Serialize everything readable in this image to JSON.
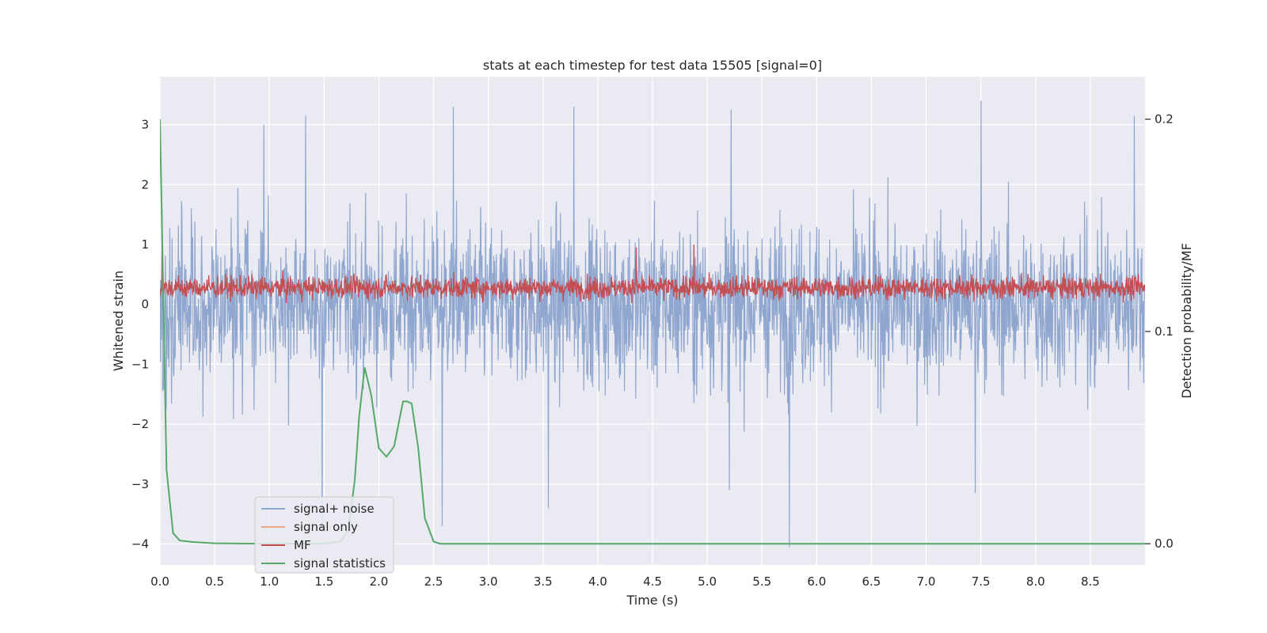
{
  "chart_data": {
    "type": "line",
    "title": "stats at each timestep for test data 15505 [signal=0]",
    "xlabel": "Time (s)",
    "ylabel": "Whitened strain",
    "y2label": "Detection probability/MF",
    "xlim": [
      0,
      9.0
    ],
    "ylim": [
      -4.35,
      3.8
    ],
    "y2lim": [
      -0.01,
      0.22
    ],
    "grid": true,
    "legend_position": "lower-left",
    "x_ticks": [
      0.0,
      0.5,
      1.0,
      1.5,
      2.0,
      2.5,
      3.0,
      3.5,
      4.0,
      4.5,
      5.0,
      5.5,
      6.0,
      6.5,
      7.0,
      7.5,
      8.0,
      8.5
    ],
    "x_tick_labels": [
      "0.0",
      "0.5",
      "1.0",
      "1.5",
      "2.0",
      "2.5",
      "3.0",
      "3.5",
      "4.0",
      "4.5",
      "5.0",
      "5.5",
      "6.0",
      "6.5",
      "7.0",
      "7.5",
      "8.0",
      "8.5"
    ],
    "y_ticks": [
      3,
      2,
      1,
      0,
      -1,
      -2,
      -3,
      -4
    ],
    "y_tick_labels": [
      "3",
      "2",
      "1",
      "0",
      "−1",
      "−2",
      "−3",
      "−4"
    ],
    "y2_ticks": [
      0.2,
      0.1,
      0.0
    ],
    "y2_tick_labels": [
      "0.2",
      "0.1",
      "0.0"
    ],
    "series": [
      {
        "name": "signal+ noise",
        "color": "#8fa6cf",
        "axis": "left",
        "description": "whitened strain noise, spans roughly -2.5 to 2.5 with spikes",
        "noise_range": [
          -2.6,
          2.6
        ],
        "spikes": [
          {
            "x": 0.95,
            "y": 3.0
          },
          {
            "x": 1.33,
            "y": 3.15
          },
          {
            "x": 2.68,
            "y": 3.3
          },
          {
            "x": 3.78,
            "y": 3.3
          },
          {
            "x": 5.22,
            "y": 3.25
          },
          {
            "x": 7.5,
            "y": 3.4
          },
          {
            "x": 8.9,
            "y": 3.15
          },
          {
            "x": 1.48,
            "y": -3.8
          },
          {
            "x": 2.58,
            "y": -3.7
          },
          {
            "x": 3.55,
            "y": -3.4
          },
          {
            "x": 5.75,
            "y": -4.05
          },
          {
            "x": 7.45,
            "y": -3.15
          },
          {
            "x": 5.2,
            "y": -3.1
          }
        ]
      },
      {
        "name": "signal only",
        "color": "#e9a88a",
        "axis": "left",
        "values": []
      },
      {
        "name": "MF",
        "color": "#c44e52",
        "axis": "left",
        "description": "matched filter output, mostly between 0 and 0.7",
        "noise_range": [
          0.0,
          0.65
        ],
        "spikes": [
          {
            "x": 4.35,
            "y": 0.95
          },
          {
            "x": 4.88,
            "y": 1.0
          },
          {
            "x": 0.02,
            "y": 1.3
          }
        ]
      },
      {
        "name": "signal statistics",
        "color": "#55a868",
        "axis": "right",
        "x": [
          0.0,
          0.06,
          0.12,
          0.18,
          0.3,
          0.5,
          1.0,
          1.5,
          1.65,
          1.72,
          1.78,
          1.82,
          1.87,
          1.93,
          2.0,
          2.07,
          2.14,
          2.22,
          2.26,
          2.3,
          2.36,
          2.42,
          2.5,
          2.56,
          3.0,
          4.0,
          5.0,
          6.0,
          7.0,
          8.0,
          9.0
        ],
        "y": [
          0.2,
          0.035,
          0.005,
          0.0015,
          0.0008,
          0.0002,
          0.0,
          0.0,
          0.001,
          0.006,
          0.03,
          0.06,
          0.083,
          0.07,
          0.045,
          0.041,
          0.046,
          0.067,
          0.067,
          0.066,
          0.045,
          0.012,
          0.001,
          0.0,
          0.0,
          0.0,
          0.0,
          0.0,
          0.0,
          0.0,
          0.0
        ]
      }
    ],
    "legend": [
      "signal+ noise",
      "signal only",
      "MF",
      "signal statistics"
    ]
  }
}
